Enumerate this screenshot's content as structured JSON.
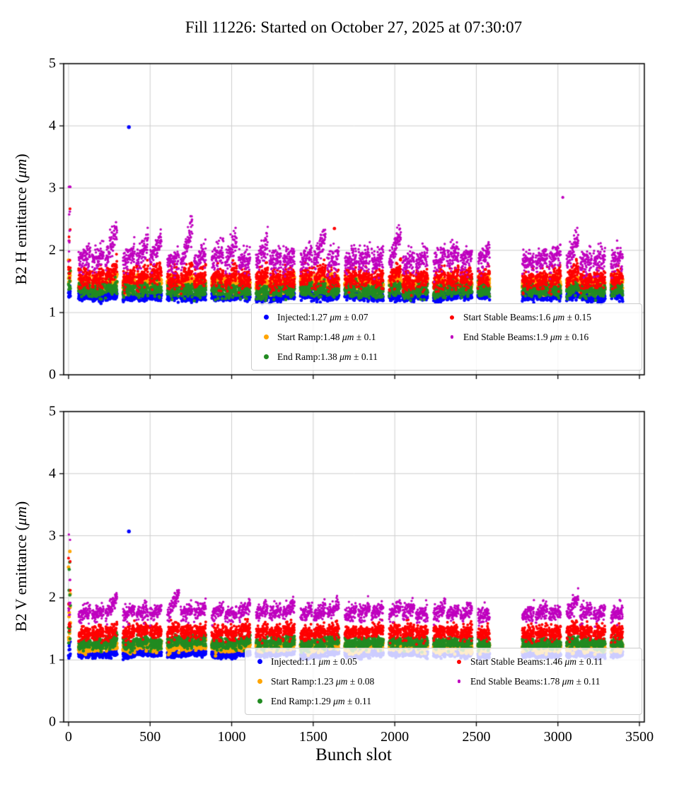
{
  "title": "Fill 11226: Started on October 27, 2025 at 07:30:07",
  "xlabel": "Bunch slot",
  "chart_data": [
    {
      "type": "scatter",
      "ylabel": "B2 H emittance (μm)",
      "xlabel": "",
      "xlim": [
        -30,
        3530
      ],
      "ylim": [
        0,
        5
      ],
      "xticks": [
        0,
        500,
        1000,
        1500,
        2000,
        2500,
        3000,
        3500
      ],
      "yticks": [
        0,
        1,
        2,
        3,
        4,
        5
      ],
      "grid": true,
      "legend_position": "lower right",
      "x_data_range": [
        0,
        3424
      ],
      "series": [
        {
          "name": "Injected",
          "color": "#0000ff",
          "mean": 1.27,
          "std": 0.07,
          "legend_label": "Injected:1.27 μm ± 0.07"
        },
        {
          "name": "Start Ramp",
          "color": "#ffa500",
          "mean": 1.48,
          "std": 0.1,
          "legend_label": "Start Ramp:1.48 μm ± 0.1"
        },
        {
          "name": "End Ramp",
          "color": "#228b22",
          "mean": 1.38,
          "std": 0.11,
          "legend_label": "End Ramp:1.38 μm ± 0.11"
        },
        {
          "name": "Start Stable Beams",
          "color": "#ff0000",
          "mean": 1.6,
          "std": 0.15,
          "legend_label": "Start Stable Beams:1.6 μm ± 0.15"
        },
        {
          "name": "End Stable Beams",
          "color": "#bf00bf",
          "mean": 1.9,
          "std": 0.16,
          "legend_label": "End Stable Beams:1.9 μm ± 0.16"
        }
      ],
      "outliers": [
        {
          "series": "Injected",
          "x": 370,
          "y": 3.98
        },
        {
          "series": "Start Stable Beams",
          "x": 1630,
          "y": 2.35
        },
        {
          "series": "End Stable Beams",
          "x": 3030,
          "y": 2.85
        }
      ]
    },
    {
      "type": "scatter",
      "ylabel": "B2 V emittance (μm)",
      "xlabel": "Bunch slot",
      "xlim": [
        -30,
        3530
      ],
      "ylim": [
        0,
        5
      ],
      "xticks": [
        0,
        500,
        1000,
        1500,
        2000,
        2500,
        3000,
        3500
      ],
      "yticks": [
        0,
        1,
        2,
        3,
        4,
        5
      ],
      "grid": true,
      "legend_position": "lower right",
      "x_data_range": [
        0,
        3424
      ],
      "series": [
        {
          "name": "Injected",
          "color": "#0000ff",
          "mean": 1.1,
          "std": 0.05,
          "legend_label": "Injected:1.1 μm ± 0.05"
        },
        {
          "name": "Start Ramp",
          "color": "#ffa500",
          "mean": 1.23,
          "std": 0.08,
          "legend_label": "Start Ramp:1.23 μm ± 0.08"
        },
        {
          "name": "End Ramp",
          "color": "#228b22",
          "mean": 1.29,
          "std": 0.11,
          "legend_label": "End Ramp:1.29 μm ± 0.11"
        },
        {
          "name": "Start Stable Beams",
          "color": "#ff0000",
          "mean": 1.46,
          "std": 0.11,
          "legend_label": "Start Stable Beams:1.46 μm ± 0.11"
        },
        {
          "name": "End Stable Beams",
          "color": "#bf00bf",
          "mean": 1.78,
          "std": 0.11,
          "legend_label": "End Stable Beams:1.78 μm ± 0.11"
        }
      ],
      "outliers": [
        {
          "series": "Injected",
          "x": 370,
          "y": 3.07
        }
      ]
    }
  ]
}
